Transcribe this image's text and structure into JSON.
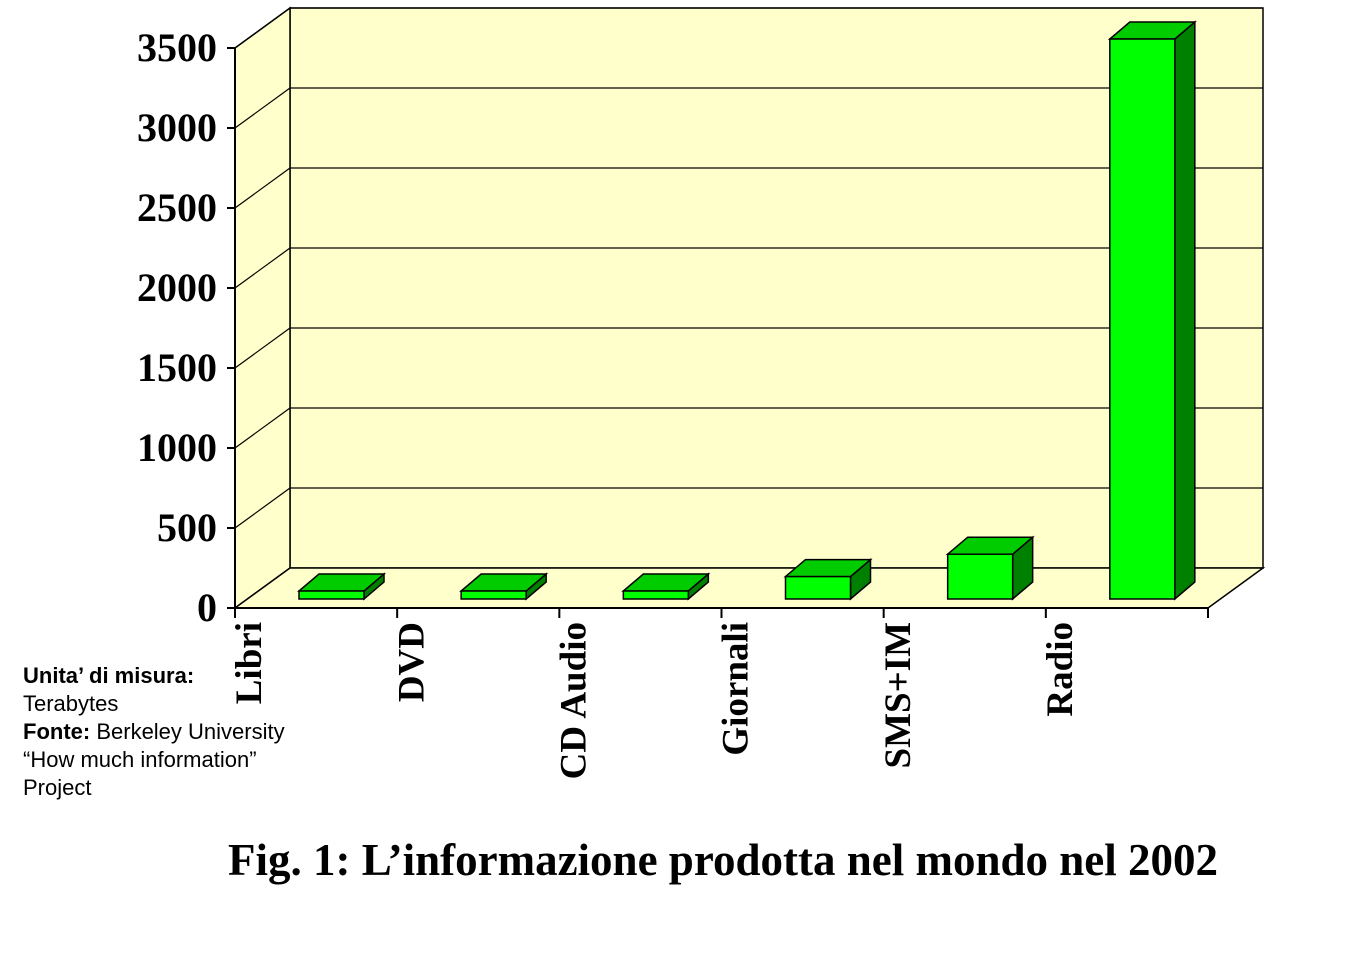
{
  "chart_data": {
    "type": "bar",
    "categories": [
      "Libri",
      "DVD",
      "CD Audio",
      "Giornali",
      "SMS+IM",
      "Radio"
    ],
    "values": [
      8,
      8,
      20,
      140,
      280,
      3500
    ],
    "ylim": [
      0,
      3500
    ],
    "yticks": [
      0,
      500,
      1000,
      1500,
      2000,
      2500,
      3000,
      3500
    ],
    "grid": true,
    "title": "",
    "xlabel": "",
    "ylabel": ""
  },
  "note": {
    "unit_label": "Unita’ di misura:",
    "unit_value": "Terabytes",
    "source_label": "Fonte:",
    "source_value": "Berkeley University “How much information” Project"
  },
  "caption": "Fig. 1: L’informazione prodotta nel mondo nel 2002",
  "colors": {
    "background": "#ffffcc",
    "bar_front": "#00ff00",
    "bar_top": "#00cc00",
    "bar_side": "#008000",
    "grid": "#000000"
  }
}
